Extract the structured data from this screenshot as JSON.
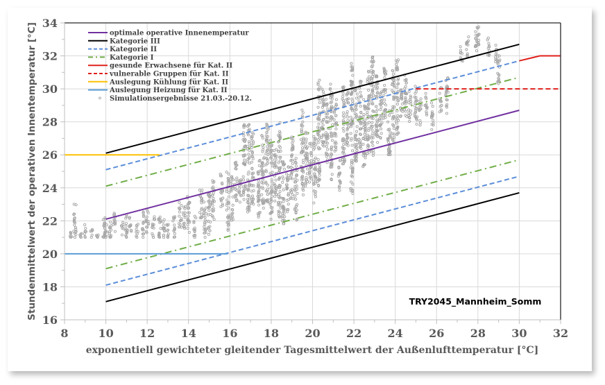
{
  "chart_data": {
    "type": "line+scatter",
    "title": "",
    "xlabel": "exponentiell gewichteter gleitender Tagesmittelwert der Außenlufttemperatur [°C]",
    "ylabel": "Stundenmittelwert der operativen Innentemperatur [°C]",
    "xlim": [
      8,
      32
    ],
    "ylim": [
      16,
      34
    ],
    "x_ticks": [
      "8",
      "10",
      "12",
      "14",
      "16",
      "18",
      "20",
      "22",
      "24",
      "26",
      "28",
      "30",
      "32"
    ],
    "y_ticks": [
      "16",
      "18",
      "20",
      "22",
      "24",
      "26",
      "28",
      "30",
      "32",
      "34"
    ],
    "grid": true,
    "legend_position": "upper-left-inside",
    "annotation": "TRY2045_Mannheim_Somm",
    "series": [
      {
        "name": "optimale operative Innenemperatur",
        "color": "#7030A0",
        "style": "solid",
        "points": [
          [
            10,
            22.1
          ],
          [
            30,
            28.7
          ]
        ]
      },
      {
        "name": "Kategorie III",
        "color": "#000000",
        "style": "solid",
        "points": [
          [
            10,
            26.1
          ],
          [
            30,
            32.7
          ]
        ],
        "lower": [
          [
            10,
            17.1
          ],
          [
            30,
            23.7
          ]
        ]
      },
      {
        "name": "Kategorie II",
        "color": "#5B8DD9",
        "style": "dashed",
        "points": [
          [
            10,
            25.1
          ],
          [
            30,
            31.7
          ]
        ],
        "lower": [
          [
            10,
            18.1
          ],
          [
            30,
            24.7
          ]
        ]
      },
      {
        "name": "Kategorie I",
        "color": "#70AD47",
        "style": "dashdot",
        "points": [
          [
            10,
            24.1
          ],
          [
            30,
            30.7
          ]
        ],
        "lower": [
          [
            10,
            19.1
          ],
          [
            30,
            25.7
          ]
        ]
      },
      {
        "name": "gesunde Erwachsene für Kat. II",
        "color": "#E0201B",
        "style": "solid",
        "points": [
          [
            30,
            31.7
          ],
          [
            31,
            32
          ],
          [
            32,
            32
          ]
        ]
      },
      {
        "name": "vulnerable Gruppen für Kat. II",
        "color": "#E0201B",
        "style": "dashed",
        "points": [
          [
            25,
            30
          ],
          [
            32,
            30
          ]
        ]
      },
      {
        "name": "Auslegung Kühlung für Kat. II",
        "color": "#FFC000",
        "style": "solid",
        "points": [
          [
            8,
            26
          ],
          [
            12.6,
            26
          ]
        ]
      },
      {
        "name": "Auslegung Heizung für Kat. II",
        "color": "#5B9BD5",
        "style": "solid",
        "points": [
          [
            8,
            20
          ],
          [
            15.9,
            20
          ]
        ]
      },
      {
        "name": "Simulationsergebnisse 21.03.-20.12.",
        "color": "#A6A6A6",
        "style": "marker",
        "strips": [
          [
            8.3,
            21,
            21.5
          ],
          [
            8.5,
            21,
            23.1
          ],
          [
            8.8,
            21,
            21.3
          ],
          [
            9.0,
            21,
            21.8
          ],
          [
            9.3,
            21,
            21.5
          ],
          [
            9.6,
            21,
            21.2
          ],
          [
            9.9,
            21,
            22.2
          ],
          [
            10.0,
            21,
            22.4
          ],
          [
            10.2,
            21,
            22.3
          ],
          [
            10.4,
            21.2,
            22.5
          ],
          [
            10.8,
            21.1,
            22.0
          ],
          [
            11.0,
            21,
            22.4
          ],
          [
            11.2,
            21.3,
            22.3
          ],
          [
            11.5,
            21,
            21.9
          ],
          [
            11.8,
            21,
            22.6
          ],
          [
            12.0,
            21.2,
            22.9
          ],
          [
            12.3,
            21,
            22.3
          ],
          [
            12.6,
            21,
            22.8
          ],
          [
            12.8,
            21,
            22.2
          ],
          [
            13.0,
            21,
            22.0
          ],
          [
            13.3,
            21.0,
            22.3
          ],
          [
            13.6,
            21.6,
            23.4
          ],
          [
            13.8,
            21.5,
            22.9
          ],
          [
            14.0,
            21.2,
            23.5
          ],
          [
            14.3,
            21,
            22.4
          ],
          [
            14.6,
            22.0,
            23.9
          ],
          [
            14.8,
            21.0,
            23.2
          ],
          [
            15.0,
            21.1,
            24.1
          ],
          [
            15.2,
            22.0,
            24.5
          ],
          [
            15.6,
            22.8,
            24.9
          ],
          [
            15.9,
            21.4,
            25.0
          ],
          [
            16.1,
            22.0,
            24.7
          ],
          [
            16.3,
            23.2,
            25.6
          ],
          [
            16.5,
            22.9,
            24.6
          ],
          [
            16.7,
            23.2,
            27.9
          ],
          [
            16.9,
            22.5,
            27.9
          ],
          [
            17.1,
            23.0,
            27.4
          ],
          [
            17.4,
            21.9,
            25.7
          ],
          [
            17.6,
            22.5,
            27.2
          ],
          [
            17.8,
            23.0,
            28.0
          ],
          [
            18.0,
            22.0,
            26.9
          ],
          [
            18.2,
            23.2,
            26.5
          ],
          [
            18.4,
            22.2,
            28.2
          ],
          [
            18.6,
            21.8,
            25.6
          ],
          [
            18.8,
            22.5,
            25.3
          ],
          [
            19.0,
            23.2,
            27.2
          ],
          [
            19.2,
            22.0,
            25.8
          ],
          [
            19.5,
            23.5,
            28.8
          ],
          [
            19.7,
            24.0,
            27.5
          ],
          [
            19.9,
            24.3,
            26.8
          ],
          [
            20.1,
            23.0,
            27.2
          ],
          [
            20.3,
            24.0,
            30.6
          ],
          [
            20.5,
            26.5,
            30.2
          ],
          [
            20.7,
            25.5,
            29.5
          ],
          [
            20.9,
            24.3,
            30.5
          ],
          [
            21.1,
            26.2,
            29.4
          ],
          [
            21.3,
            23.8,
            25.7
          ],
          [
            21.5,
            25.4,
            30.4
          ],
          [
            21.7,
            26.5,
            29.8
          ],
          [
            21.9,
            23.6,
            31.6
          ],
          [
            22.1,
            25.5,
            30.0
          ],
          [
            22.3,
            26.2,
            30.5
          ],
          [
            22.5,
            25.2,
            29.5
          ],
          [
            22.7,
            26.0,
            31.1
          ],
          [
            22.9,
            25.6,
            32.1
          ],
          [
            23.1,
            26.5,
            30.8
          ],
          [
            23.3,
            27.0,
            30.1
          ],
          [
            23.5,
            28.0,
            31.5
          ],
          [
            23.7,
            26.0,
            29.3
          ],
          [
            23.9,
            26.7,
            31.4
          ],
          [
            24.1,
            27.2,
            31.8
          ],
          [
            24.3,
            28.2,
            30.4
          ],
          [
            24.5,
            28.2,
            30.9
          ],
          [
            24.7,
            28.0,
            29.9
          ],
          [
            25.0,
            27.8,
            30.4
          ],
          [
            25.2,
            27.8,
            29.4
          ],
          [
            25.5,
            28.4,
            29.8
          ],
          [
            25.8,
            27.5,
            29.2
          ],
          [
            26.2,
            28.6,
            30.2
          ],
          [
            26.5,
            28.5,
            30.8
          ],
          [
            27.2,
            31.6,
            32.6
          ],
          [
            27.5,
            31.8,
            33.2
          ],
          [
            27.9,
            32.3,
            33.6
          ],
          [
            28.0,
            32.5,
            33.9
          ],
          [
            28.5,
            32.0,
            33.1
          ],
          [
            28.9,
            31.5,
            32.7
          ],
          [
            29.0,
            30.2,
            32.0
          ]
        ]
      }
    ]
  },
  "legend": {
    "items": [
      {
        "label": "optimale operative Innenemperatur",
        "color": "#7030A0",
        "style": "solid"
      },
      {
        "label": "Kategorie III",
        "color": "#000000",
        "style": "solid"
      },
      {
        "label": "Kategorie II",
        "color": "#5B8DD9",
        "style": "dashed"
      },
      {
        "label": "Kategorie I",
        "color": "#70AD47",
        "style": "dashdot"
      },
      {
        "label": "gesunde Erwachsene für Kat. II",
        "color": "#E0201B",
        "style": "solid"
      },
      {
        "label": "vulnerable Gruppen für Kat. II",
        "color": "#E0201B",
        "style": "dashed"
      },
      {
        "label": "Auslegung Kühlung für Kat. II",
        "color": "#FFC000",
        "style": "solid"
      },
      {
        "label": "Auslegung Heizung für Kat. II",
        "color": "#5B9BD5",
        "style": "solid"
      },
      {
        "label": "Simulationsergebnisse 21.03.-20.12.",
        "color": "#A6A6A6",
        "style": "marker"
      }
    ]
  }
}
